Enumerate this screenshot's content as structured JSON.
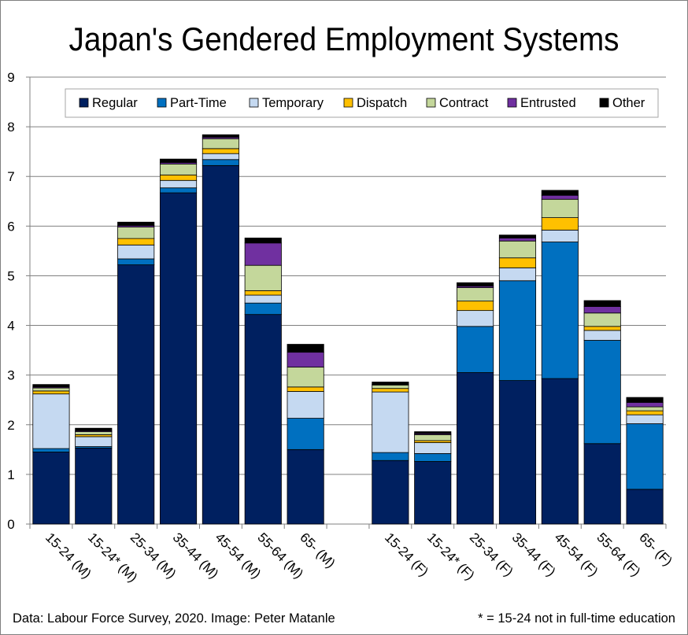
{
  "chart_data": {
    "type": "bar",
    "stacked": true,
    "title": "Japan's Gendered Employment Systems",
    "categories": [
      "15-24 (M)",
      "15-24* (M)",
      "25-34 (M)",
      "35-44 (M)",
      "45-54 (M)",
      "55-64 (M)",
      "65- (M)",
      "15-24 (F)",
      "15-24* (F)",
      "25-34 (F)",
      "35-44 (F)",
      "45-54 (F)",
      "55-64 (F)",
      "65- (F)"
    ],
    "ylim": [
      0,
      9
    ],
    "yticks": [
      0,
      1,
      2,
      3,
      4,
      5,
      6,
      7,
      8,
      9
    ],
    "grid": true,
    "legend_position": "top",
    "series": [
      {
        "name": "Regular",
        "color": "#002060",
        "values": [
          1.45,
          1.53,
          5.22,
          6.67,
          7.22,
          4.22,
          1.5,
          1.28,
          1.26,
          3.05,
          2.89,
          2.93,
          1.62,
          0.7
        ]
      },
      {
        "name": "Part-Time",
        "color": "#0070c0",
        "values": [
          0.07,
          0.03,
          0.12,
          0.1,
          0.12,
          0.23,
          0.63,
          0.16,
          0.16,
          0.93,
          2.01,
          2.75,
          2.08,
          1.32
        ]
      },
      {
        "name": "Temporary",
        "color": "#c5d9f1",
        "values": [
          1.1,
          0.2,
          0.28,
          0.15,
          0.12,
          0.16,
          0.54,
          1.22,
          0.22,
          0.32,
          0.26,
          0.24,
          0.2,
          0.18
        ]
      },
      {
        "name": "Dispatch",
        "color": "#ffc000",
        "values": [
          0.06,
          0.04,
          0.13,
          0.11,
          0.1,
          0.09,
          0.09,
          0.07,
          0.04,
          0.19,
          0.2,
          0.25,
          0.08,
          0.08
        ]
      },
      {
        "name": "Contract",
        "color": "#c4d79b",
        "values": [
          0.06,
          0.06,
          0.23,
          0.22,
          0.2,
          0.51,
          0.4,
          0.07,
          0.12,
          0.27,
          0.34,
          0.37,
          0.27,
          0.08
        ]
      },
      {
        "name": "Entrusted",
        "color": "#7030a0",
        "values": [
          0.02,
          0.02,
          0.03,
          0.03,
          0.03,
          0.45,
          0.3,
          0.01,
          0.02,
          0.03,
          0.06,
          0.08,
          0.13,
          0.09
        ]
      },
      {
        "name": "Other",
        "color": "#000000",
        "values": [
          0.05,
          0.05,
          0.07,
          0.07,
          0.05,
          0.1,
          0.16,
          0.05,
          0.04,
          0.07,
          0.06,
          0.1,
          0.12,
          0.1
        ]
      }
    ]
  },
  "footer": {
    "source": "Data: Labour Force Survey, 2020. Image: Peter Matanle",
    "note": "* = 15-24 not in full-time education"
  }
}
